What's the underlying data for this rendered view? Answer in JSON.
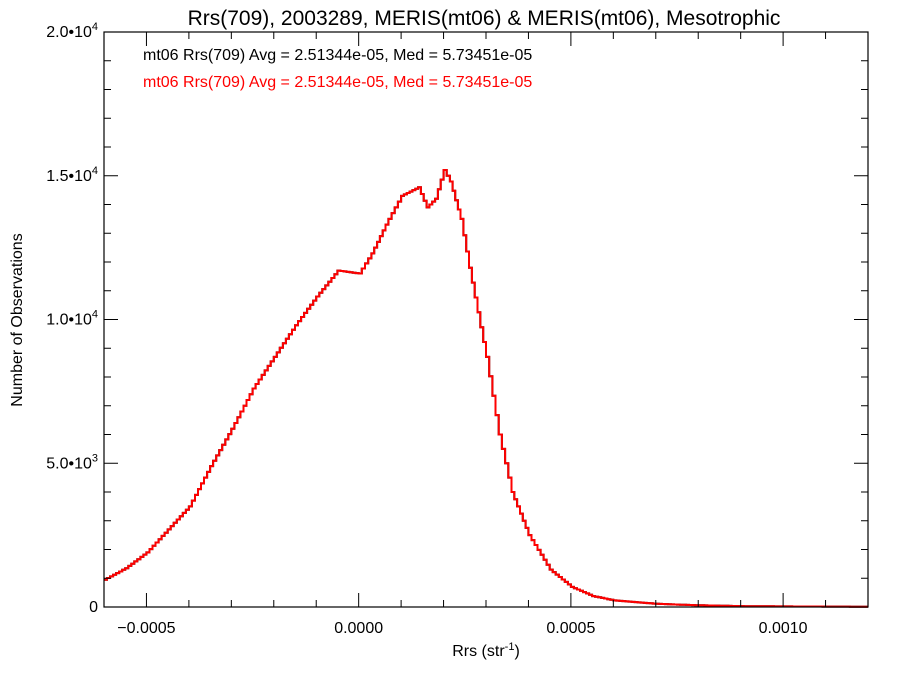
{
  "chart_data": {
    "type": "line",
    "step": true,
    "title": "Rrs(709), 2003289, MERIS(mt06) & MERIS(mt06), Mesotrophic",
    "xlabel_main": "Rrs (str",
    "xlabel_sup": "-1",
    "xlabel_close": ")",
    "ylabel": "Number of Observations",
    "xlim": [
      -0.0006,
      0.0012
    ],
    "ylim": [
      0,
      20000
    ],
    "x_ticks": [
      {
        "value": -0.0005,
        "label": "−0.0005"
      },
      {
        "value": 0.0,
        "label": "0.0000"
      },
      {
        "value": 0.0005,
        "label": "0.0005"
      },
      {
        "value": 0.001,
        "label": "0.0010"
      }
    ],
    "y_ticks": [
      {
        "value": 0,
        "label": "0",
        "sup": ""
      },
      {
        "value": 5000,
        "label": "5.0•10",
        "sup": "3"
      },
      {
        "value": 10000,
        "label": "1.0•10",
        "sup": "4"
      },
      {
        "value": 15000,
        "label": "1.5•10",
        "sup": "4"
      },
      {
        "value": 20000,
        "label": "2.0•10",
        "sup": "4"
      }
    ],
    "annotations": [
      {
        "text": "mt06 Rrs(709) Avg = 2.51344e-05, Med = 5.73451e-05",
        "color": "#000000"
      },
      {
        "text": "mt06 Rrs(709) Avg = 2.51344e-05, Med = 5.73451e-05",
        "color": "#ff0000"
      }
    ],
    "series": [
      {
        "color": "#000000",
        "points": [
          [
            -0.0006,
            950
          ],
          [
            -0.00055,
            1350
          ],
          [
            -0.0005,
            1900
          ],
          [
            -0.00045,
            2700
          ],
          [
            -0.0004,
            3500
          ],
          [
            -0.00035,
            4900
          ],
          [
            -0.0003,
            6200
          ],
          [
            -0.00025,
            7600
          ],
          [
            -0.0002,
            8700
          ],
          [
            -0.00015,
            9800
          ],
          [
            -0.0001,
            10800
          ],
          [
            -5e-05,
            11700
          ],
          [
            0.0,
            11600
          ],
          [
            3e-05,
            12300
          ],
          [
            7e-05,
            13500
          ],
          [
            0.0001,
            14300
          ],
          [
            0.00014,
            14600
          ],
          [
            0.00016,
            13900
          ],
          [
            0.00018,
            14200
          ],
          [
            0.0002,
            15200
          ],
          [
            0.000215,
            14800
          ],
          [
            0.00024,
            13500
          ],
          [
            0.00026,
            11800
          ],
          [
            0.0003,
            8700
          ],
          [
            0.00033,
            6000
          ],
          [
            0.00036,
            4000
          ],
          [
            0.0004,
            2500
          ],
          [
            0.00045,
            1300
          ],
          [
            0.0005,
            700
          ],
          [
            0.00055,
            380
          ],
          [
            0.0006,
            230
          ],
          [
            0.0007,
            110
          ],
          [
            0.0008,
            60
          ],
          [
            0.0009,
            30
          ],
          [
            0.001,
            20
          ],
          [
            0.0012,
            10
          ]
        ]
      },
      {
        "color": "#ff0000",
        "points": [
          [
            -0.0006,
            950
          ],
          [
            -0.00055,
            1350
          ],
          [
            -0.0005,
            1900
          ],
          [
            -0.00045,
            2700
          ],
          [
            -0.0004,
            3500
          ],
          [
            -0.00035,
            4900
          ],
          [
            -0.0003,
            6200
          ],
          [
            -0.00025,
            7600
          ],
          [
            -0.0002,
            8700
          ],
          [
            -0.00015,
            9800
          ],
          [
            -0.0001,
            10800
          ],
          [
            -5e-05,
            11700
          ],
          [
            0.0,
            11600
          ],
          [
            3e-05,
            12300
          ],
          [
            7e-05,
            13500
          ],
          [
            0.0001,
            14300
          ],
          [
            0.00014,
            14600
          ],
          [
            0.00016,
            13900
          ],
          [
            0.00018,
            14200
          ],
          [
            0.0002,
            15200
          ],
          [
            0.000215,
            14800
          ],
          [
            0.00024,
            13500
          ],
          [
            0.00026,
            11800
          ],
          [
            0.0003,
            8700
          ],
          [
            0.00033,
            6000
          ],
          [
            0.00036,
            4000
          ],
          [
            0.0004,
            2500
          ],
          [
            0.00045,
            1300
          ],
          [
            0.0005,
            700
          ],
          [
            0.00055,
            380
          ],
          [
            0.0006,
            230
          ],
          [
            0.0007,
            110
          ],
          [
            0.0008,
            60
          ],
          [
            0.0009,
            30
          ],
          [
            0.001,
            20
          ],
          [
            0.0012,
            10
          ]
        ]
      }
    ]
  }
}
